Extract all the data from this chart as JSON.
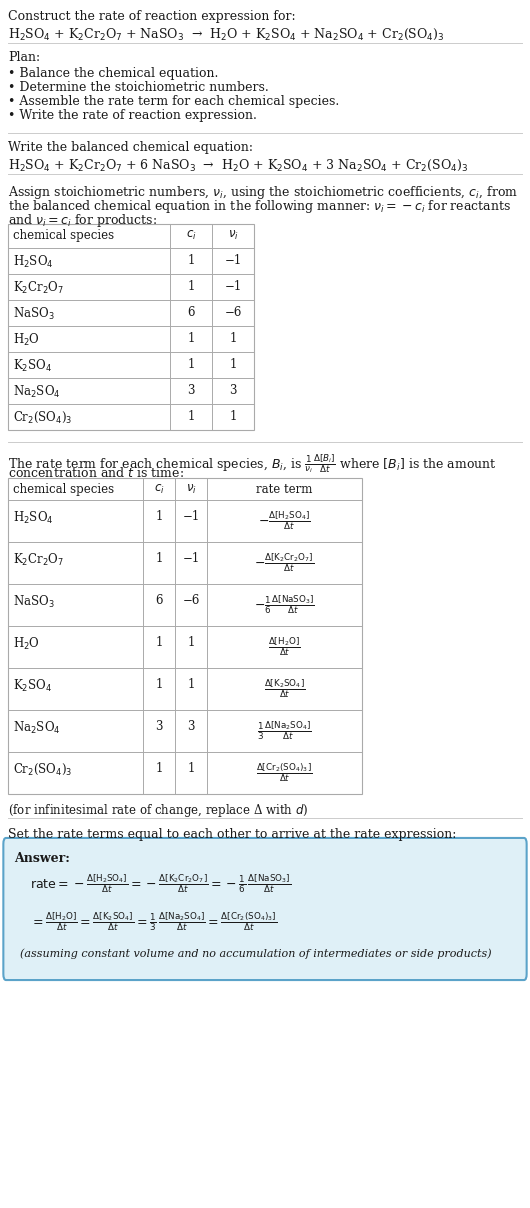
{
  "title_line1": "Construct the rate of reaction expression for:",
  "reaction_unbalanced": "H$_2$SO$_4$ + K$_2$Cr$_2$O$_7$ + NaSO$_3$  →  H$_2$O + K$_2$SO$_4$ + Na$_2$SO$_4$ + Cr$_2$(SO$_4$)$_3$",
  "plan_header": "Plan:",
  "plan_items": [
    "• Balance the chemical equation.",
    "• Determine the stoichiometric numbers.",
    "• Assemble the rate term for each chemical species.",
    "• Write the rate of reaction expression."
  ],
  "balanced_header": "Write the balanced chemical equation:",
  "reaction_balanced": "H$_2$SO$_4$ + K$_2$Cr$_2$O$_7$ + 6 NaSO$_3$  →  H$_2$O + K$_2$SO$_4$ + 3 Na$_2$SO$_4$ + Cr$_2$(SO$_4$)$_3$",
  "stoich_intro1": "Assign stoichiometric numbers, $\\nu_i$, using the stoichiometric coefficients, $c_i$, from",
  "stoich_intro2": "the balanced chemical equation in the following manner: $\\nu_i = -c_i$ for reactants",
  "stoich_intro3": "and $\\nu_i = c_i$ for products:",
  "table1_col_headers": [
    "chemical species",
    "$c_i$",
    "$\\nu_i$"
  ],
  "table1_data": [
    [
      "H$_2$SO$_4$",
      "1",
      "−1"
    ],
    [
      "K$_2$Cr$_2$O$_7$",
      "1",
      "−1"
    ],
    [
      "NaSO$_3$",
      "6",
      "−6"
    ],
    [
      "H$_2$O",
      "1",
      "1"
    ],
    [
      "K$_2$SO$_4$",
      "1",
      "1"
    ],
    [
      "Na$_2$SO$_4$",
      "3",
      "3"
    ],
    [
      "Cr$_2$(SO$_4$)$_3$",
      "1",
      "1"
    ]
  ],
  "rate_intro1": "The rate term for each chemical species, $B_i$, is $\\frac{1}{\\nu_i}\\frac{\\Delta[B_i]}{\\Delta t}$ where $[B_i]$ is the amount",
  "rate_intro2": "concentration and $t$ is time:",
  "table2_col_headers": [
    "chemical species",
    "$c_i$",
    "$\\nu_i$",
    "rate term"
  ],
  "table2_data": [
    [
      "H$_2$SO$_4$",
      "1",
      "−1",
      "$-\\frac{\\Delta[\\mathrm{H_2SO_4}]}{\\Delta t}$"
    ],
    [
      "K$_2$Cr$_2$O$_7$",
      "1",
      "−1",
      "$-\\frac{\\Delta[\\mathrm{K_2Cr_2O_7}]}{\\Delta t}$"
    ],
    [
      "NaSO$_3$",
      "6",
      "−6",
      "$-\\frac{1}{6}\\frac{\\Delta[\\mathrm{NaSO_3}]}{\\Delta t}$"
    ],
    [
      "H$_2$O",
      "1",
      "1",
      "$\\frac{\\Delta[\\mathrm{H_2O}]}{\\Delta t}$"
    ],
    [
      "K$_2$SO$_4$",
      "1",
      "1",
      "$\\frac{\\Delta[\\mathrm{K_2SO_4}]}{\\Delta t}$"
    ],
    [
      "Na$_2$SO$_4$",
      "3",
      "3",
      "$\\frac{1}{3}\\frac{\\Delta[\\mathrm{Na_2SO_4}]}{\\Delta t}$"
    ],
    [
      "Cr$_2$(SO$_4$)$_3$",
      "1",
      "1",
      "$\\frac{\\Delta[\\mathrm{Cr_2(SO_4)_3}]}{\\Delta t}$"
    ]
  ],
  "infinitesimal_note": "(for infinitesimal rate of change, replace Δ with $d$)",
  "set_equal_text": "Set the rate terms equal to each other to arrive at the rate expression:",
  "answer_box_color": "#dff0f7",
  "answer_border_color": "#5ba3c9",
  "answer_label": "Answer:",
  "answer_line1": "$\\mathrm{rate} = -\\frac{\\Delta[\\mathrm{H_2SO_4}]}{\\Delta t} = -\\frac{\\Delta[\\mathrm{K_2Cr_2O_7}]}{\\Delta t} = -\\frac{1}{6}\\,\\frac{\\Delta[\\mathrm{NaSO_3}]}{\\Delta t}$",
  "answer_line2": "$= \\frac{\\Delta[\\mathrm{H_2O}]}{\\Delta t} = \\frac{\\Delta[\\mathrm{K_2SO_4}]}{\\Delta t} = \\frac{1}{3}\\,\\frac{\\Delta[\\mathrm{Na_2SO_4}]}{\\Delta t} = \\frac{\\Delta[\\mathrm{Cr_2(SO_4)_3}]}{\\Delta t}$",
  "answer_note": "(assuming constant volume and no accumulation of intermediates or side products)",
  "bg_color": "#ffffff",
  "text_color": "#1a1a1a",
  "table_border_color": "#aaaaaa",
  "separator_color": "#cccccc",
  "font_size": 9.0,
  "small_font_size": 8.5
}
